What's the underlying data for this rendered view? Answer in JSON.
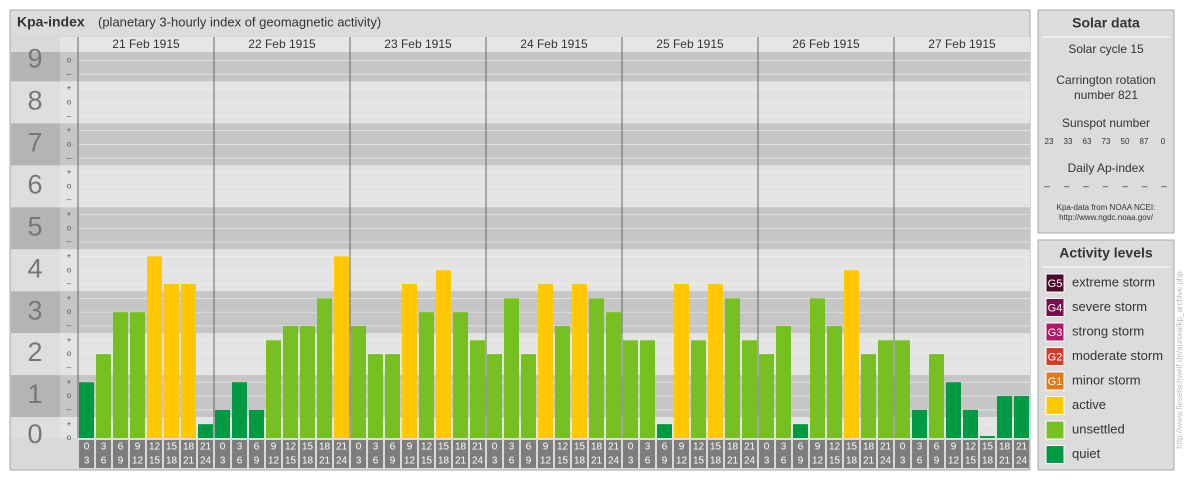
{
  "chart_data": {
    "type": "bar",
    "title": "Kpa-index",
    "subtitle": "(planetary 3-hourly index of geomagnetic activity)",
    "ylim": [
      0,
      9.2
    ],
    "yticks": [
      0,
      1,
      2,
      3,
      4,
      5,
      6,
      7,
      8,
      9
    ],
    "minor_ticks": [
      {
        "value": 0,
        "label": "o"
      },
      {
        "value": 0.33,
        "label": "+"
      },
      {
        "value": 0.67,
        "label": "–"
      },
      {
        "value": 1,
        "label": "o"
      },
      {
        "value": 1.33,
        "label": "+"
      },
      {
        "value": 1.67,
        "label": "–"
      },
      {
        "value": 2,
        "label": "o"
      },
      {
        "value": 2.33,
        "label": "+"
      },
      {
        "value": 2.67,
        "label": "–"
      },
      {
        "value": 3,
        "label": "o"
      },
      {
        "value": 3.33,
        "label": "+"
      },
      {
        "value": 3.67,
        "label": "–"
      },
      {
        "value": 4,
        "label": "o"
      },
      {
        "value": 4.33,
        "label": "+"
      },
      {
        "value": 4.67,
        "label": "–"
      },
      {
        "value": 5,
        "label": "o"
      },
      {
        "value": 5.33,
        "label": "+"
      },
      {
        "value": 5.67,
        "label": "–"
      },
      {
        "value": 6,
        "label": "o"
      },
      {
        "value": 6.33,
        "label": "+"
      },
      {
        "value": 6.67,
        "label": "–"
      },
      {
        "value": 7,
        "label": "o"
      },
      {
        "value": 7.33,
        "label": "+"
      },
      {
        "value": 7.67,
        "label": "–"
      },
      {
        "value": 8,
        "label": "o"
      },
      {
        "value": 8.33,
        "label": "+"
      },
      {
        "value": 8.67,
        "label": "–"
      },
      {
        "value": 9,
        "label": "o"
      }
    ],
    "hours": [
      [
        "0",
        "3"
      ],
      [
        "3",
        "6"
      ],
      [
        "6",
        "9"
      ],
      [
        "9",
        "12"
      ],
      [
        "12",
        "15"
      ],
      [
        "15",
        "18"
      ],
      [
        "18",
        "21"
      ],
      [
        "21",
        "24"
      ]
    ],
    "days": [
      {
        "date": "21 Feb 1915",
        "values": [
          1.33,
          2,
          3,
          3,
          4.33,
          3.67,
          3.67,
          0.33
        ],
        "colors": [
          "#009944",
          "#77c022",
          "#77c022",
          "#77c022",
          "#ffc800",
          "#ffc800",
          "#ffc800",
          "#009944"
        ]
      },
      {
        "date": "22 Feb 1915",
        "values": [
          0.67,
          1.33,
          0.67,
          2.33,
          2.67,
          2.67,
          3.33,
          4.33
        ],
        "colors": [
          "#009944",
          "#009944",
          "#009944",
          "#77c022",
          "#77c022",
          "#77c022",
          "#77c022",
          "#ffc800"
        ]
      },
      {
        "date": "23 Feb 1915",
        "values": [
          2.67,
          2,
          2,
          3.67,
          3,
          4,
          3,
          2.33
        ],
        "colors": [
          "#77c022",
          "#77c022",
          "#77c022",
          "#ffc800",
          "#77c022",
          "#ffc800",
          "#77c022",
          "#77c022"
        ]
      },
      {
        "date": "24 Feb 1915",
        "values": [
          2,
          3.33,
          2,
          3.67,
          2.67,
          3.67,
          3.33,
          3
        ],
        "colors": [
          "#77c022",
          "#77c022",
          "#77c022",
          "#ffc800",
          "#77c022",
          "#ffc800",
          "#77c022",
          "#77c022"
        ]
      },
      {
        "date": "25 Feb 1915",
        "values": [
          2.33,
          2.33,
          0.33,
          3.67,
          2.33,
          3.67,
          3.33,
          2.33
        ],
        "colors": [
          "#77c022",
          "#77c022",
          "#009944",
          "#ffc800",
          "#77c022",
          "#ffc800",
          "#77c022",
          "#77c022"
        ]
      },
      {
        "date": "26 Feb 1915",
        "values": [
          2,
          2.67,
          0.33,
          3.33,
          2.67,
          4,
          2,
          2.33
        ],
        "colors": [
          "#77c022",
          "#77c022",
          "#009944",
          "#77c022",
          "#77c022",
          "#ffc800",
          "#77c022",
          "#77c022"
        ]
      },
      {
        "date": "27 Feb 1915",
        "values": [
          2.33,
          0.67,
          2,
          1.33,
          0.67,
          0,
          1,
          1
        ],
        "colors": [
          "#77c022",
          "#009944",
          "#77c022",
          "#009944",
          "#009944",
          "#009944",
          "#009944",
          "#009944"
        ]
      }
    ]
  },
  "solar": {
    "title": "Solar data",
    "cycle": "Solar cycle 15",
    "rotation": [
      "Carrington rotation",
      "number 821"
    ],
    "sunspot_title": "Sunspot number",
    "sunspot": [
      "23",
      "33",
      "63",
      "73",
      "50",
      "87",
      "0"
    ],
    "ap_title": "Daily Ap-index",
    "ap": [
      "–",
      "–",
      "–",
      "–",
      "–",
      "–",
      "–"
    ],
    "source": [
      "Kpa-data from NOAA NCEI:",
      "http://www.ngdc.noaa.gov/"
    ]
  },
  "levels": {
    "title": "Activity levels",
    "items": [
      {
        "badge": "G5",
        "label": "extreme storm",
        "color": "#4a0a2a"
      },
      {
        "badge": "G4",
        "label": "severe storm",
        "color": "#7a0e4a"
      },
      {
        "badge": "G3",
        "label": "strong storm",
        "color": "#b0186a"
      },
      {
        "badge": "G2",
        "label": "moderate storm",
        "color": "#d43c2a"
      },
      {
        "badge": "G1",
        "label": "minor storm",
        "color": "#e07a1c"
      },
      {
        "label": "active",
        "color": "#ffc800"
      },
      {
        "label": "unsettled",
        "color": "#77c022"
      },
      {
        "label": "quiet",
        "color": "#009944"
      }
    ]
  },
  "watermark": "http://www.fieselschweif.de/aurora/kp_archive.php"
}
